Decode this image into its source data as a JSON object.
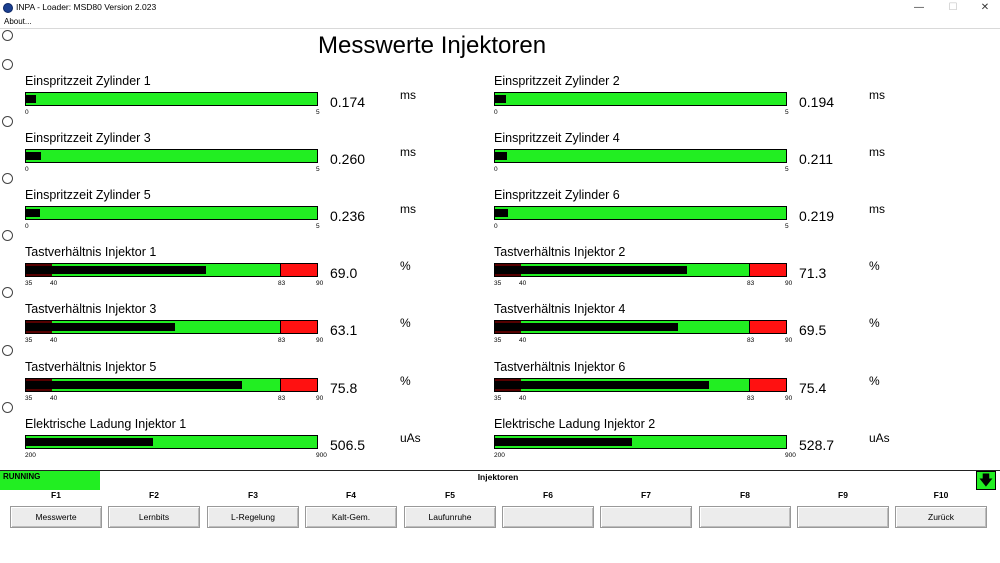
{
  "window": {
    "title": "INPA - Loader:  MSD80 Version 2.023",
    "controls": {
      "minimize": "—",
      "maximize": "☐",
      "close": "✕"
    }
  },
  "menu": {
    "about": "About..."
  },
  "page": {
    "title": "Messwerte Injektoren"
  },
  "meters": [
    {
      "label": "Einspritzzeit Zylinder 1",
      "value": "0.174",
      "unit": "ms",
      "min": 0,
      "max": 5,
      "min_label": "0",
      "max_label": "5",
      "level": 0.174
    },
    {
      "label": "Einspritzzeit Zylinder 2",
      "value": "0.194",
      "unit": "ms",
      "min": 0,
      "max": 5,
      "min_label": "0",
      "max_label": "5",
      "level": 0.194
    },
    {
      "label": "Einspritzzeit Zylinder 3",
      "value": "0.260",
      "unit": "ms",
      "min": 0,
      "max": 5,
      "min_label": "0",
      "max_label": "5",
      "level": 0.26
    },
    {
      "label": "Einspritzzeit Zylinder 4",
      "value": "0.211",
      "unit": "ms",
      "min": 0,
      "max": 5,
      "min_label": "0",
      "max_label": "5",
      "level": 0.211
    },
    {
      "label": "Einspritzzeit Zylinder 5",
      "value": "0.236",
      "unit": "ms",
      "min": 0,
      "max": 5,
      "min_label": "0",
      "max_label": "5",
      "level": 0.236
    },
    {
      "label": "Einspritzzeit Zylinder 6",
      "value": "0.219",
      "unit": "ms",
      "min": 0,
      "max": 5,
      "min_label": "0",
      "max_label": "5",
      "level": 0.219
    },
    {
      "label": "Tastverhältnis Injektor 1",
      "value": "69.0",
      "unit": "%",
      "min": 35,
      "max": 90,
      "min_label": "35",
      "max_label": "90",
      "low_limit": 40,
      "high_limit": 83,
      "low_label": "40",
      "high_label": "83",
      "level": 69.0
    },
    {
      "label": "Tastverhältnis Injektor 2",
      "value": "71.3",
      "unit": "%",
      "min": 35,
      "max": 90,
      "min_label": "35",
      "max_label": "90",
      "low_limit": 40,
      "high_limit": 83,
      "low_label": "40",
      "high_label": "83",
      "level": 71.3
    },
    {
      "label": "Tastverhältnis Injektor 3",
      "value": "63.1",
      "unit": "%",
      "min": 35,
      "max": 90,
      "min_label": "35",
      "max_label": "90",
      "low_limit": 40,
      "high_limit": 83,
      "low_label": "40",
      "high_label": "83",
      "level": 63.1
    },
    {
      "label": "Tastverhältnis Injektor 4",
      "value": "69.5",
      "unit": "%",
      "min": 35,
      "max": 90,
      "min_label": "35",
      "max_label": "90",
      "low_limit": 40,
      "high_limit": 83,
      "low_label": "40",
      "high_label": "83",
      "level": 69.5
    },
    {
      "label": "Tastverhältnis Injektor 5",
      "value": "75.8",
      "unit": "%",
      "min": 35,
      "max": 90,
      "min_label": "35",
      "max_label": "90",
      "low_limit": 40,
      "high_limit": 83,
      "low_label": "40",
      "high_label": "83",
      "level": 75.8
    },
    {
      "label": "Tastverhältnis Injektor 6",
      "value": "75.4",
      "unit": "%",
      "min": 35,
      "max": 90,
      "min_label": "35",
      "max_label": "90",
      "low_limit": 40,
      "high_limit": 83,
      "low_label": "40",
      "high_label": "83",
      "level": 75.4
    },
    {
      "label": "Elektrische Ladung Injektor 1",
      "value": "506.5",
      "unit": "uAs",
      "min": 200,
      "max": 900,
      "min_label": "200",
      "max_label": "900",
      "level": 506.5
    },
    {
      "label": "Elektrische Ladung Injektor 2",
      "value": "528.7",
      "unit": "uAs",
      "min": 200,
      "max": 900,
      "min_label": "200",
      "max_label": "900",
      "level": 528.7
    }
  ],
  "status": {
    "state": "RUNNING",
    "section": "Injektoren",
    "scroll_icon": "arrow-down-icon",
    "arrow_glyph": "🡇"
  },
  "function_keys": [
    {
      "key": "F1",
      "label": "Messwerte"
    },
    {
      "key": "F2",
      "label": "Lernbits"
    },
    {
      "key": "F3",
      "label": "L-Regelung"
    },
    {
      "key": "F4",
      "label": "Kalt-Gem."
    },
    {
      "key": "F5",
      "label": "Laufunruhe"
    },
    {
      "key": "F6",
      "label": ""
    },
    {
      "key": "F7",
      "label": ""
    },
    {
      "key": "F8",
      "label": ""
    },
    {
      "key": "F9",
      "label": ""
    },
    {
      "key": "F10",
      "label": "Zurück"
    }
  ],
  "colors": {
    "ok": "#22ee22",
    "limit": "#ff1111",
    "low_zone": "#550000",
    "fill": "#000000"
  }
}
